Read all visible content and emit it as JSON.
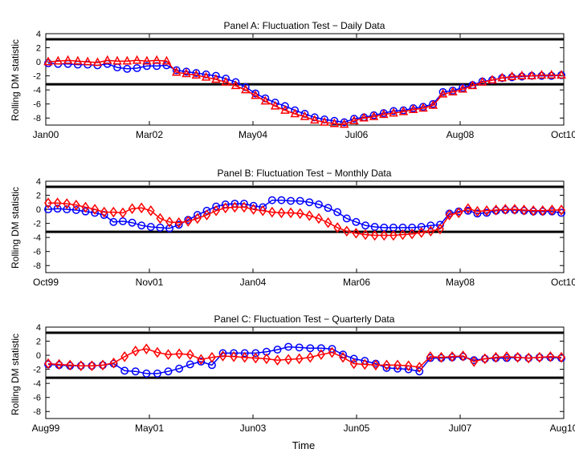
{
  "figure": {
    "xlabel": "Time",
    "colors": {
      "series_1": "#0000ff",
      "series_2": "#ff0000",
      "threshold": "#000000",
      "axes": "#000000"
    }
  },
  "chart_data": [
    {
      "type": "line",
      "title": "Panel A: Fluctuation Test − Daily Data",
      "ylabel": "Rolling DM statistic",
      "ylim": [
        -9,
        4
      ],
      "yticks": [
        "4",
        "2",
        "0",
        "-2",
        "-4",
        "-6",
        "-8"
      ],
      "yticks_values": [
        4,
        2,
        0,
        -2,
        -4,
        -6,
        -8
      ],
      "xticks": [
        "Jan00",
        "Mar02",
        "May04",
        "Jul06",
        "Aug08",
        "Oct10"
      ],
      "thresholds": [
        3.2,
        -3.2
      ],
      "grid": false,
      "series": [
        {
          "marker": "circle",
          "color": "#0000ff",
          "values": [
            -0.2,
            -0.3,
            -0.3,
            -0.4,
            -0.4,
            -0.5,
            -0.3,
            -0.8,
            -1.0,
            -0.9,
            -0.6,
            -0.6,
            -0.5,
            -1.2,
            -1.4,
            -1.6,
            -1.8,
            -2.0,
            -2.4,
            -2.9,
            -3.6,
            -4.5,
            -5.2,
            -5.8,
            -6.3,
            -6.9,
            -7.4,
            -7.9,
            -8.2,
            -8.4,
            -8.6,
            -8.1,
            -7.9,
            -7.6,
            -7.3,
            -7.0,
            -6.9,
            -6.6,
            -6.4,
            -6.0,
            -4.3,
            -4.1,
            -3.7,
            -3.3,
            -2.8,
            -2.6,
            -2.3,
            -2.2,
            -2.1,
            -2.0,
            -2.0,
            -2.0,
            -1.9
          ]
        },
        {
          "marker": "triangle",
          "color": "#ff0000",
          "values": [
            0.0,
            0.1,
            0.2,
            0.1,
            0.0,
            -0.1,
            0.2,
            0.1,
            0.1,
            0.2,
            0.1,
            0.2,
            0.1,
            -1.5,
            -1.7,
            -1.9,
            -2.2,
            -2.5,
            -2.9,
            -3.4,
            -4.0,
            -4.8,
            -5.6,
            -6.3,
            -6.9,
            -7.4,
            -7.8,
            -8.3,
            -8.6,
            -8.8,
            -8.9,
            -8.4,
            -8.0,
            -7.8,
            -7.5,
            -7.3,
            -7.1,
            -6.8,
            -6.6,
            -6.2,
            -4.6,
            -4.3,
            -3.9,
            -3.4,
            -2.9,
            -2.6,
            -2.3,
            -2.1,
            -2.0,
            -2.0,
            -1.9,
            -1.9,
            -1.9
          ]
        }
      ]
    },
    {
      "type": "line",
      "title": "Panel B: Fluctuation Test − Monthly Data",
      "ylabel": "Rolling DM statistic",
      "ylim": [
        -9,
        4
      ],
      "yticks": [
        "4",
        "2",
        "0",
        "-2",
        "-4",
        "-6",
        "-8"
      ],
      "yticks_values": [
        4,
        2,
        0,
        -2,
        -4,
        -6,
        -8
      ],
      "xticks": [
        "Oct99",
        "Nov01",
        "Jan04",
        "Mar06",
        "May08",
        "Oct10"
      ],
      "thresholds": [
        3.2,
        -3.2
      ],
      "grid": false,
      "series": [
        {
          "marker": "circle",
          "color": "#0000ff",
          "values": [
            0.0,
            0.1,
            0.0,
            -0.1,
            -0.3,
            -0.5,
            -0.8,
            -1.8,
            -1.7,
            -1.9,
            -2.3,
            -2.5,
            -2.6,
            -2.7,
            -2.2,
            -1.5,
            -0.8,
            -0.2,
            0.4,
            0.7,
            0.8,
            0.8,
            0.5,
            0.3,
            1.3,
            1.3,
            1.2,
            1.2,
            1.0,
            0.7,
            0.2,
            -0.4,
            -1.3,
            -1.8,
            -2.3,
            -2.5,
            -2.6,
            -2.6,
            -2.6,
            -2.6,
            -2.5,
            -2.3,
            -2.2,
            -0.6,
            -0.3,
            -0.2,
            -0.6,
            -0.5,
            -0.2,
            -0.1,
            -0.1,
            -0.2,
            -0.3,
            -0.3,
            -0.3,
            -0.5
          ]
        },
        {
          "marker": "diamond",
          "color": "#ff0000",
          "values": [
            0.9,
            0.9,
            0.8,
            0.6,
            0.3,
            0.0,
            -0.4,
            -0.4,
            -0.5,
            0.1,
            0.2,
            -0.2,
            -1.3,
            -1.8,
            -1.9,
            -1.7,
            -1.3,
            -0.8,
            -0.2,
            0.2,
            0.3,
            0.3,
            0.0,
            -0.2,
            -0.4,
            -0.5,
            -0.5,
            -0.6,
            -0.9,
            -1.3,
            -1.9,
            -2.6,
            -3.1,
            -3.4,
            -3.6,
            -3.7,
            -3.7,
            -3.7,
            -3.6,
            -3.5,
            -3.3,
            -3.1,
            -2.8,
            -0.8,
            -0.5,
            0.1,
            -0.3,
            -0.2,
            -0.1,
            0.0,
            0.0,
            -0.1,
            -0.2,
            -0.2,
            -0.1,
            -0.1
          ]
        }
      ]
    },
    {
      "type": "line",
      "title": "Panel C: Fluctuation Test − Quarterly Data",
      "ylabel": "Rolling DM statistic",
      "ylim": [
        -9,
        4
      ],
      "yticks": [
        "4",
        "2",
        "0",
        "-2",
        "-4",
        "-6",
        "-8"
      ],
      "yticks_values": [
        4,
        2,
        0,
        -2,
        -4,
        -6,
        -8
      ],
      "xticks": [
        "Aug99",
        "May01",
        "Jun03",
        "Jun05",
        "Jul07",
        "Aug10"
      ],
      "thresholds": [
        3.2,
        -3.2
      ],
      "grid": false,
      "series": [
        {
          "marker": "circle",
          "color": "#0000ff",
          "values": [
            -1.3,
            -1.4,
            -1.5,
            -1.5,
            -1.5,
            -1.4,
            -1.2,
            -2.2,
            -2.3,
            -2.6,
            -2.6,
            -2.3,
            -1.9,
            -1.3,
            -0.9,
            -1.4,
            0.3,
            0.3,
            0.3,
            0.3,
            0.5,
            0.8,
            1.2,
            1.1,
            1.0,
            1.0,
            0.9,
            0.1,
            -0.5,
            -0.8,
            -1.2,
            -1.8,
            -1.9,
            -2.0,
            -2.3,
            -0.4,
            -0.4,
            -0.3,
            -0.2,
            -0.7,
            -0.5,
            -0.4,
            -0.4,
            -0.3,
            -0.4,
            -0.3,
            -0.3,
            -0.4
          ]
        },
        {
          "marker": "diamond",
          "color": "#ff0000",
          "values": [
            -1.2,
            -1.3,
            -1.4,
            -1.5,
            -1.5,
            -1.4,
            -1.1,
            -0.2,
            0.6,
            0.9,
            0.4,
            0.1,
            0.2,
            0.1,
            -0.6,
            -0.3,
            -0.1,
            -0.2,
            -0.3,
            -0.4,
            -0.5,
            -0.7,
            -0.6,
            -0.5,
            -0.3,
            0.1,
            0.4,
            -0.3,
            -1.2,
            -1.3,
            -1.4,
            -1.4,
            -1.4,
            -1.5,
            -1.7,
            -0.2,
            -0.3,
            -0.2,
            -0.1,
            -0.9,
            -0.5,
            -0.3,
            -0.2,
            -0.3,
            -0.4,
            -0.3,
            -0.2,
            -0.3
          ]
        }
      ]
    }
  ]
}
